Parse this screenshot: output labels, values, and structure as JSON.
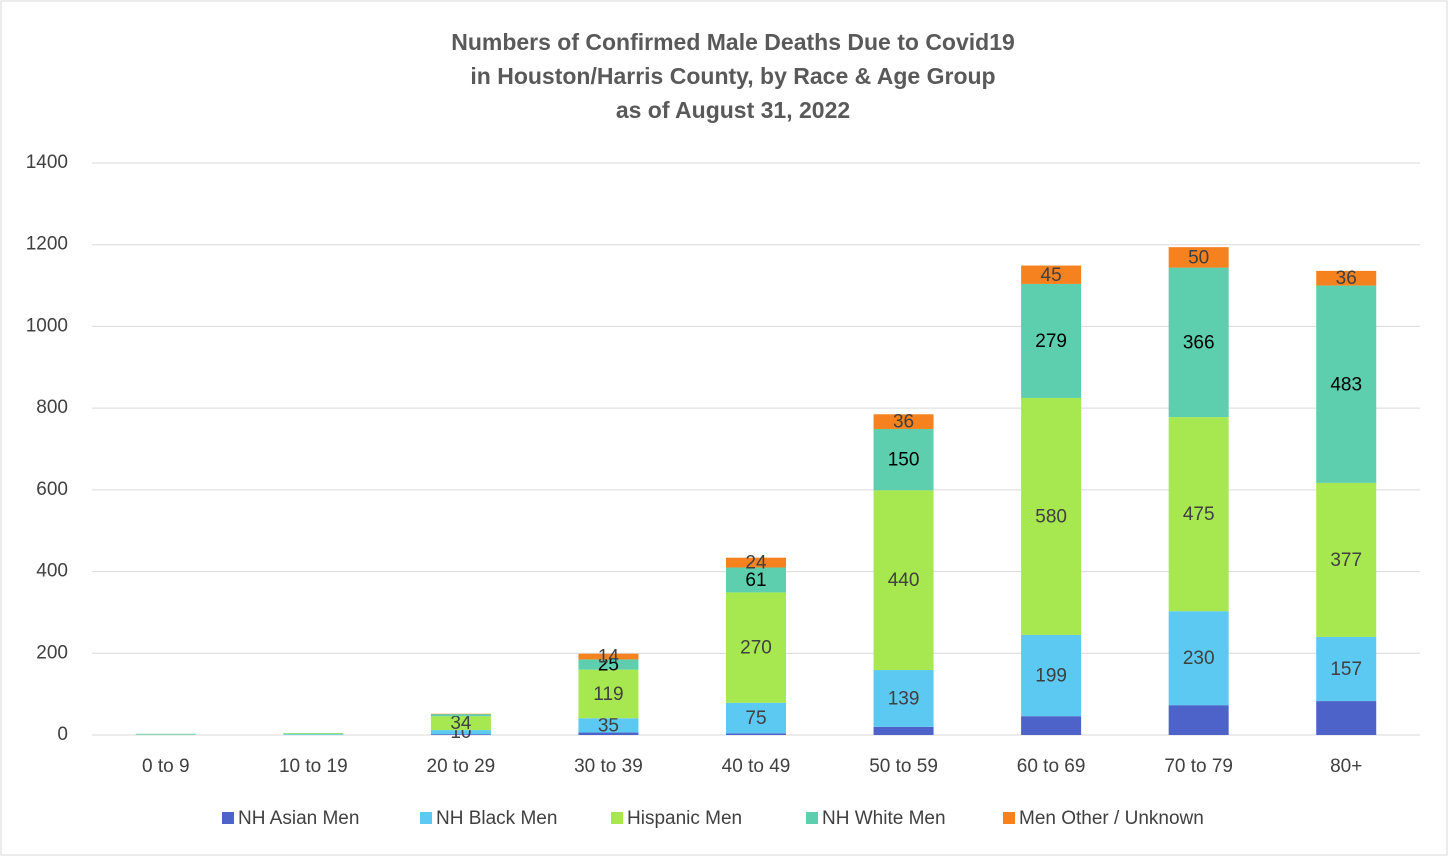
{
  "chart_data": {
    "type": "stacked_bar",
    "title": [
      "Numbers of Confirmed Male Deaths Due to Covid19",
      "in Houston/Harris County, by Race & Age Group",
      "as of August 31, 2022"
    ],
    "categories": [
      "0 to 9",
      "10 to 19",
      "20 to 29",
      "30 to 39",
      "40 to 49",
      "50 to 59",
      "60 to 69",
      "70 to 79",
      "80+"
    ],
    "series": [
      {
        "name": "NH Asian Men",
        "color": "#4d63c9",
        "values": [
          0,
          0,
          2,
          6,
          4,
          20,
          46,
          73,
          83
        ],
        "value_labels": [
          null,
          null,
          null,
          null,
          null,
          null,
          null,
          null,
          null
        ]
      },
      {
        "name": "NH Black Men",
        "color": "#5bc9f2",
        "values": [
          1,
          2,
          10,
          35,
          75,
          139,
          199,
          230,
          157
        ],
        "value_labels": [
          null,
          null,
          "10",
          "35",
          "75",
          "139",
          "199",
          "230",
          "157"
        ]
      },
      {
        "name": "Hispanic Men",
        "color": "#a7e850",
        "values": [
          1,
          2,
          34,
          119,
          270,
          440,
          580,
          475,
          377
        ],
        "value_labels": [
          null,
          null,
          "34",
          "119",
          "270",
          "440",
          "580",
          "475",
          "377"
        ]
      },
      {
        "name": "NH White Men",
        "color": "#5dceae",
        "values": [
          1,
          1,
          5,
          25,
          61,
          150,
          279,
          366,
          483
        ],
        "value_labels": [
          null,
          null,
          null,
          "25",
          "61",
          "150",
          "279",
          "366",
          "483"
        ]
      },
      {
        "name": "Men Other / Unknown",
        "color": "#f5821f",
        "values": [
          0,
          0,
          1,
          14,
          24,
          36,
          45,
          50,
          36
        ],
        "value_labels": [
          null,
          null,
          null,
          "14",
          "24",
          "36",
          "45",
          "50",
          "36"
        ]
      }
    ],
    "ylim": [
      0,
      1400
    ],
    "yticks": [
      0,
      200,
      400,
      600,
      800,
      1000,
      1200,
      1400
    ],
    "grid": true,
    "legend": "bottom"
  }
}
